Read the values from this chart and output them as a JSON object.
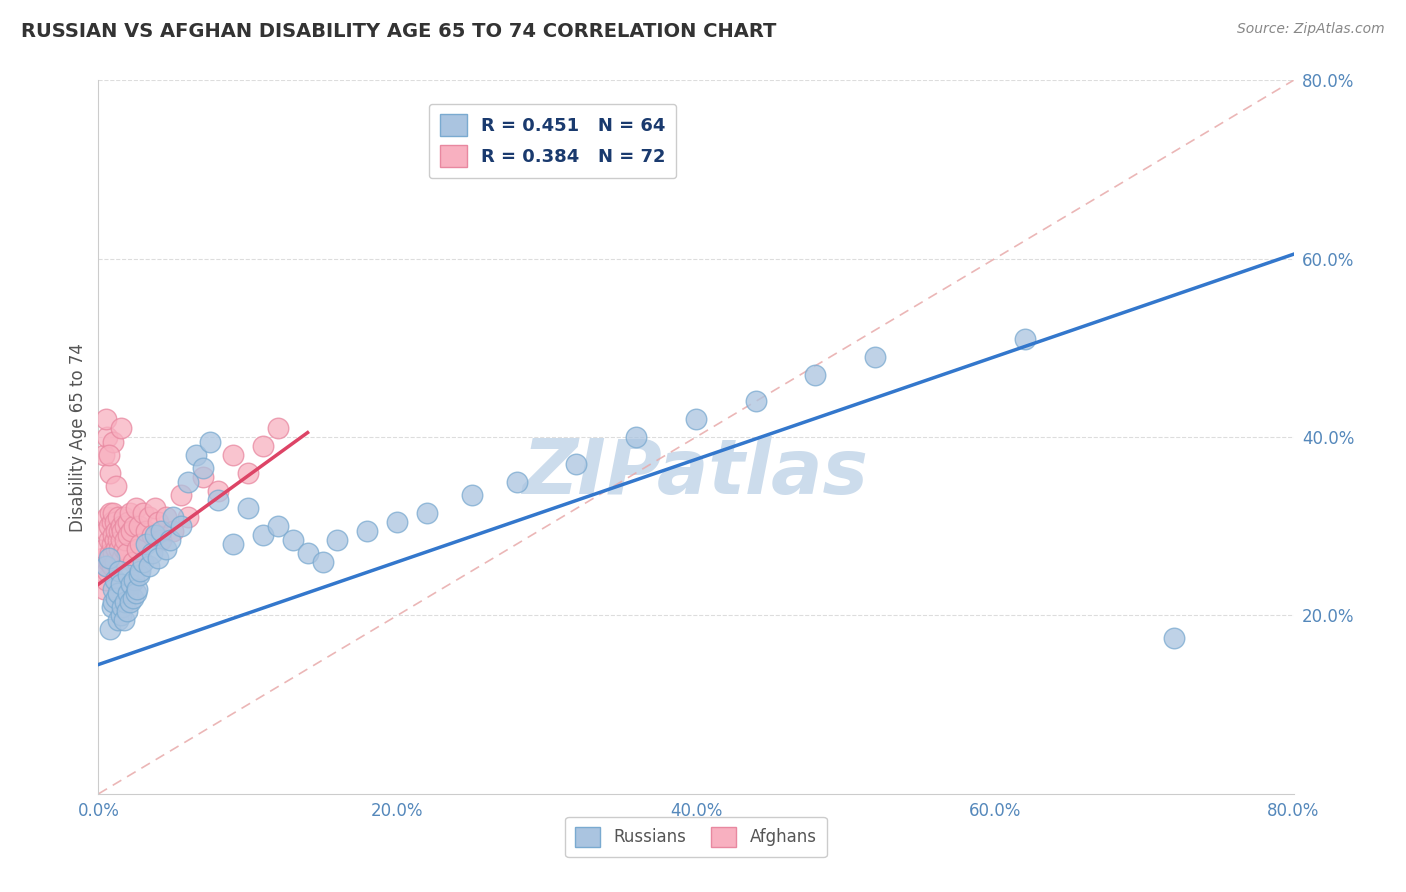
{
  "title": "RUSSIAN VS AFGHAN DISABILITY AGE 65 TO 74 CORRELATION CHART",
  "source_text": "Source: ZipAtlas.com",
  "ylabel": "Disability Age 65 to 74",
  "xlim": [
    0.0,
    0.8
  ],
  "ylim": [
    0.0,
    0.8
  ],
  "xtick_labels": [
    "0.0%",
    "20.0%",
    "40.0%",
    "60.0%",
    "80.0%"
  ],
  "xtick_vals": [
    0.0,
    0.2,
    0.4,
    0.6,
    0.8
  ],
  "ytick_labels": [
    "20.0%",
    "40.0%",
    "60.0%",
    "80.0%"
  ],
  "ytick_vals": [
    0.2,
    0.4,
    0.6,
    0.8
  ],
  "russian_R": 0.451,
  "russian_N": 64,
  "afghan_R": 0.384,
  "afghan_N": 72,
  "russian_color": "#aac4e0",
  "russian_edge_color": "#7aaad0",
  "afghan_color": "#f8b0c0",
  "afghan_edge_color": "#e888a0",
  "russian_line_color": "#3377cc",
  "afghan_line_color": "#dd4466",
  "diag_line_color": "#e8aaaa",
  "watermark_color": "#ccdcec",
  "title_color": "#333333",
  "source_color": "#888888",
  "axis_label_color": "#555555",
  "tick_color": "#5588bb",
  "grid_color": "#dddddd",
  "legend_text_color": "#1a3a6e",
  "russians_x": [
    0.005,
    0.007,
    0.008,
    0.009,
    0.01,
    0.01,
    0.011,
    0.012,
    0.013,
    0.013,
    0.014,
    0.015,
    0.015,
    0.016,
    0.017,
    0.018,
    0.019,
    0.02,
    0.02,
    0.021,
    0.022,
    0.023,
    0.024,
    0.025,
    0.026,
    0.027,
    0.028,
    0.03,
    0.032,
    0.034,
    0.036,
    0.038,
    0.04,
    0.042,
    0.045,
    0.048,
    0.05,
    0.055,
    0.06,
    0.065,
    0.07,
    0.075,
    0.08,
    0.09,
    0.1,
    0.11,
    0.12,
    0.13,
    0.14,
    0.15,
    0.16,
    0.18,
    0.2,
    0.22,
    0.25,
    0.28,
    0.32,
    0.36,
    0.4,
    0.44,
    0.48,
    0.52,
    0.62,
    0.72
  ],
  "russians_y": [
    0.255,
    0.265,
    0.185,
    0.21,
    0.215,
    0.23,
    0.24,
    0.22,
    0.225,
    0.195,
    0.25,
    0.2,
    0.235,
    0.21,
    0.195,
    0.215,
    0.205,
    0.225,
    0.245,
    0.215,
    0.235,
    0.22,
    0.24,
    0.225,
    0.23,
    0.245,
    0.25,
    0.26,
    0.28,
    0.255,
    0.27,
    0.29,
    0.265,
    0.295,
    0.275,
    0.285,
    0.31,
    0.3,
    0.35,
    0.38,
    0.365,
    0.395,
    0.33,
    0.28,
    0.32,
    0.29,
    0.3,
    0.285,
    0.27,
    0.26,
    0.285,
    0.295,
    0.305,
    0.315,
    0.335,
    0.35,
    0.37,
    0.4,
    0.42,
    0.44,
    0.47,
    0.49,
    0.51,
    0.175
  ],
  "afghans_x": [
    0.002,
    0.003,
    0.004,
    0.004,
    0.005,
    0.005,
    0.006,
    0.006,
    0.007,
    0.007,
    0.007,
    0.008,
    0.008,
    0.009,
    0.009,
    0.009,
    0.01,
    0.01,
    0.01,
    0.011,
    0.011,
    0.011,
    0.012,
    0.012,
    0.013,
    0.013,
    0.014,
    0.014,
    0.015,
    0.015,
    0.016,
    0.016,
    0.017,
    0.017,
    0.018,
    0.018,
    0.019,
    0.02,
    0.02,
    0.021,
    0.022,
    0.023,
    0.024,
    0.025,
    0.026,
    0.027,
    0.028,
    0.03,
    0.032,
    0.034,
    0.036,
    0.038,
    0.04,
    0.042,
    0.045,
    0.05,
    0.055,
    0.06,
    0.07,
    0.08,
    0.09,
    0.1,
    0.11,
    0.12,
    0.004,
    0.006,
    0.008,
    0.01,
    0.012,
    0.005,
    0.007,
    0.015
  ],
  "afghans_y": [
    0.255,
    0.265,
    0.275,
    0.23,
    0.24,
    0.295,
    0.25,
    0.31,
    0.26,
    0.285,
    0.3,
    0.27,
    0.315,
    0.28,
    0.305,
    0.255,
    0.29,
    0.27,
    0.315,
    0.285,
    0.305,
    0.26,
    0.295,
    0.275,
    0.285,
    0.31,
    0.295,
    0.275,
    0.3,
    0.285,
    0.265,
    0.295,
    0.31,
    0.275,
    0.3,
    0.285,
    0.27,
    0.305,
    0.29,
    0.315,
    0.295,
    0.26,
    0.3,
    0.32,
    0.275,
    0.3,
    0.28,
    0.315,
    0.295,
    0.31,
    0.29,
    0.32,
    0.305,
    0.285,
    0.31,
    0.295,
    0.335,
    0.31,
    0.355,
    0.34,
    0.38,
    0.36,
    0.39,
    0.41,
    0.38,
    0.4,
    0.36,
    0.395,
    0.345,
    0.42,
    0.38,
    0.41
  ],
  "russian_line_x": [
    0.0,
    0.8
  ],
  "russian_line_y": [
    0.145,
    0.605
  ],
  "afghan_line_x": [
    0.0,
    0.14
  ],
  "afghan_line_y": [
    0.235,
    0.405
  ]
}
